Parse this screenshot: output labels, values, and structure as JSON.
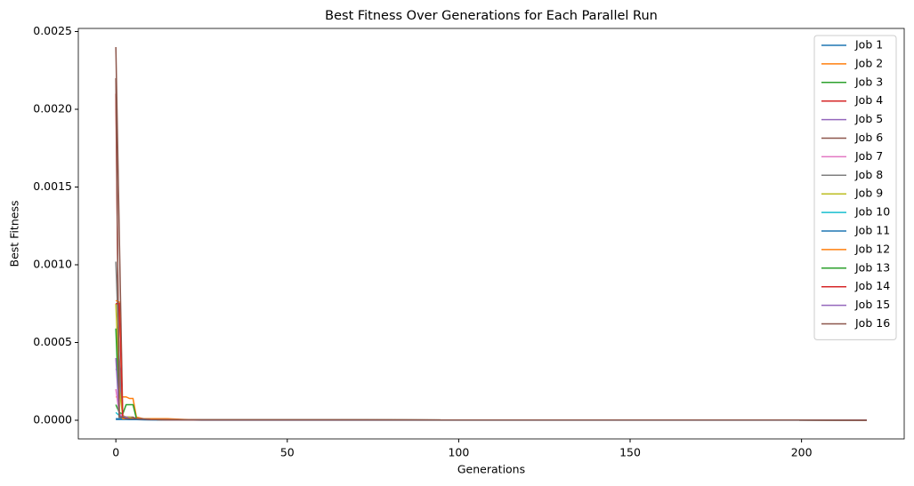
{
  "chart_data": {
    "type": "line",
    "title": "Best Fitness Over Generations for Each Parallel Run",
    "x_label": "Generations",
    "y_label": "Best Fitness",
    "x": [
      0,
      1,
      2,
      3,
      4,
      5,
      6,
      8,
      10,
      15,
      20,
      25,
      219
    ],
    "xlim": [
      -10.95,
      229.95
    ],
    "ylim": [
      -0.00012,
      0.00252
    ],
    "xticks": [
      0,
      50,
      100,
      150,
      200
    ],
    "yticks": [
      {
        "value": 0,
        "label": "0.0000"
      },
      {
        "value": 0.0005,
        "label": "0.0005"
      },
      {
        "value": 0.001,
        "label": "0.0010"
      },
      {
        "value": 0.0015,
        "label": "0.0015"
      },
      {
        "value": 0.002,
        "label": "0.0020"
      },
      {
        "value": 0.0025,
        "label": "0.0025"
      }
    ],
    "legend": "upper right",
    "series": [
      {
        "name": "Job 1",
        "color": "#1f77b4",
        "values": [
          5e-06,
          5e-06,
          5e-06,
          5e-06,
          4e-06,
          4e-06,
          4e-06,
          3e-06,
          3e-06,
          2e-06,
          2e-06,
          2e-06,
          1e-06
        ]
      },
      {
        "name": "Job 2",
        "color": "#ff7f0e",
        "values": [
          0.00015,
          0.00015,
          0.00015,
          0.00015,
          0.00014,
          0.00014,
          2e-05,
          1e-05,
          1e-05,
          8e-06,
          3e-06,
          2e-06,
          1e-06
        ]
      },
      {
        "name": "Job 3",
        "color": "#2ca02c",
        "values": [
          0.0001,
          5e-05,
          4e-05,
          0.0001,
          0.0001,
          0.0001,
          1e-05,
          8e-06,
          5e-06,
          3e-06,
          2e-06,
          2e-06,
          1e-06
        ]
      },
      {
        "name": "Job 4",
        "color": "#d62728",
        "values": [
          0.0021,
          3e-05,
          2e-05,
          2e-05,
          1e-05,
          1e-05,
          1e-05,
          8e-06,
          5e-06,
          3e-06,
          2e-06,
          2e-06,
          1e-06
        ]
      },
      {
        "name": "Job 5",
        "color": "#9467bd",
        "values": [
          0.00033,
          0.0003,
          2e-05,
          2e-05,
          1e-05,
          1e-05,
          1e-05,
          8e-06,
          5e-06,
          3e-06,
          2e-06,
          2e-06,
          1e-06
        ]
      },
      {
        "name": "Job 6",
        "color": "#8c564b",
        "values": [
          0.0024,
          0.0012,
          3e-05,
          2e-05,
          2e-05,
          2e-05,
          1e-05,
          1e-05,
          8e-06,
          5e-06,
          3e-06,
          2e-06,
          1e-06
        ]
      },
      {
        "name": "Job 7",
        "color": "#e377c2",
        "values": [
          0.0002,
          4e-05,
          3e-05,
          2e-05,
          2e-05,
          1e-05,
          1e-05,
          8e-06,
          5e-06,
          3e-06,
          2e-06,
          2e-06,
          1e-06
        ]
      },
      {
        "name": "Job 8",
        "color": "#7f7f7f",
        "values": [
          0.00102,
          0.0004,
          3e-05,
          2e-05,
          2e-05,
          1e-05,
          1e-05,
          8e-06,
          5e-06,
          3e-06,
          2e-06,
          2e-06,
          1e-06
        ]
      },
      {
        "name": "Job 9",
        "color": "#bcbd22",
        "values": [
          0.00075,
          0.0002,
          3e-05,
          2e-05,
          2e-05,
          1e-05,
          1e-05,
          8e-06,
          5e-06,
          3e-06,
          2e-06,
          2e-06,
          1e-06
        ]
      },
      {
        "name": "Job 10",
        "color": "#17becf",
        "values": [
          5e-05,
          3e-05,
          2e-05,
          2e-05,
          1e-05,
          1e-05,
          1e-05,
          8e-06,
          5e-06,
          3e-06,
          2e-06,
          2e-06,
          1e-06
        ]
      },
      {
        "name": "Job 11",
        "color": "#1f77b4",
        "values": [
          1e-05,
          1e-05,
          1e-05,
          8e-06,
          8e-06,
          6e-06,
          5e-06,
          4e-06,
          3e-06,
          2e-06,
          2e-06,
          1e-06,
          1e-06
        ]
      },
      {
        "name": "Job 12",
        "color": "#ff7f0e",
        "values": [
          0.00077,
          0.00076,
          1e-05,
          1e-05,
          1e-05,
          1e-05,
          1e-05,
          1e-05,
          1e-05,
          1e-05,
          5e-06,
          2e-06,
          1e-06
        ]
      },
      {
        "name": "Job 13",
        "color": "#2ca02c",
        "values": [
          0.00059,
          2e-05,
          2e-05,
          1e-05,
          1e-05,
          1e-05,
          1e-05,
          8e-06,
          5e-06,
          3e-06,
          2e-06,
          2e-06,
          1e-06
        ]
      },
      {
        "name": "Job 14",
        "color": "#d62728",
        "values": [
          0.00075,
          0.00075,
          2e-05,
          2e-05,
          1e-05,
          1e-05,
          1e-05,
          8e-06,
          5e-06,
          3e-06,
          2e-06,
          2e-06,
          1e-06
        ]
      },
      {
        "name": "Job 15",
        "color": "#9467bd",
        "values": [
          0.0004,
          3e-05,
          2e-05,
          2e-05,
          1e-05,
          1e-05,
          1e-05,
          8e-06,
          5e-06,
          3e-06,
          2e-06,
          2e-06,
          1e-06
        ]
      },
      {
        "name": "Job 16",
        "color": "#8c564b",
        "values": [
          0.0022,
          2e-05,
          2e-05,
          1e-05,
          1e-05,
          1e-05,
          1e-05,
          8e-06,
          5e-06,
          3e-06,
          2e-06,
          2e-06,
          1e-06
        ]
      }
    ]
  }
}
